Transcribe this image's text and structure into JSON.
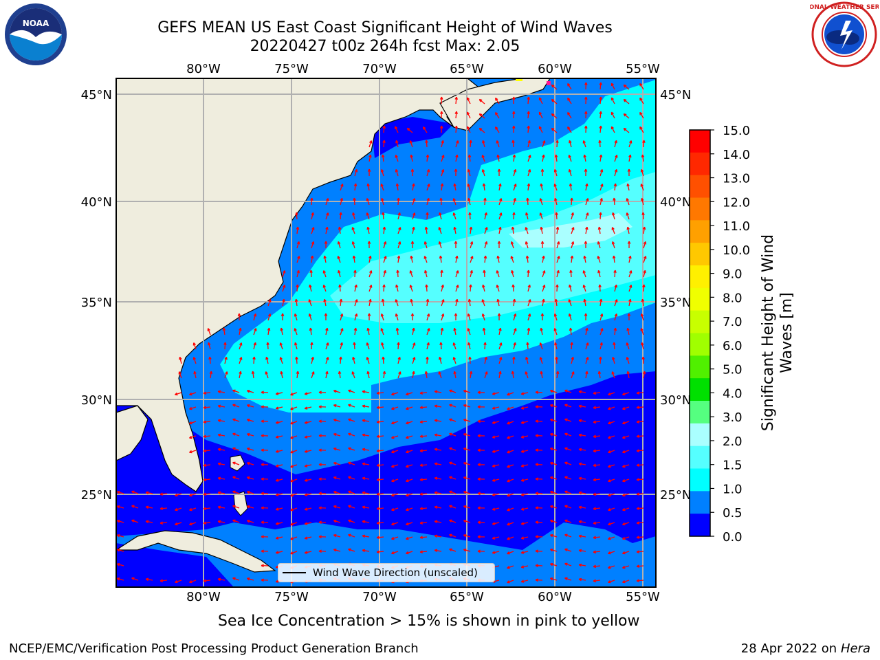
{
  "header": {
    "title_line1": "GEFS MEAN US East Coast Significant Height of Wind Waves",
    "title_line2": "20220427 t00z 264h fcst   Max: 2.05"
  },
  "map": {
    "lon_labels": [
      "80°W",
      "75°W",
      "70°W",
      "65°W",
      "60°W",
      "55°W"
    ],
    "lat_labels": [
      "45°N",
      "40°N",
      "35°N",
      "30°N",
      "25°N"
    ],
    "colors": {
      "land": "#efedde",
      "ocean_0": "#0000ff",
      "ocean_05": "#0080ff",
      "ocean_1": "#00ffff",
      "ocean_15": "#55ffff",
      "ocean_2": "#aaffff",
      "arrow": "#ff0000",
      "grid": "#b0b0b0"
    },
    "legend_label": "Wind Wave Direction (unscaled)"
  },
  "colorbar": {
    "label": "Significant Height of Wind Waves [m]",
    "ticks": [
      "15.0",
      "14.0",
      "13.0",
      "12.0",
      "11.0",
      "10.0",
      "9.0",
      "8.0",
      "7.0",
      "6.0",
      "5.0",
      "4.0",
      "3.0",
      "2.0",
      "1.5",
      "1.0",
      "0.5",
      "0.0"
    ],
    "colors_top_to_bottom": [
      "#ff0000",
      "#ff2800",
      "#ff5000",
      "#ff7800",
      "#ffa000",
      "#ffc800",
      "#fff000",
      "#f0ff00",
      "#c8ff00",
      "#a0ff00",
      "#50f000",
      "#00e000",
      "#55ff80",
      "#aaffff",
      "#55ffff",
      "#00ffff",
      "#0080ff",
      "#0000ff"
    ]
  },
  "notes": {
    "ice": "Sea Ice Concentration > 15% is shown in pink to yellow"
  },
  "footer": {
    "left": "NCEP/EMC/Verification Post Processing Product Generation Branch",
    "right_prefix": "28 Apr 2022 on ",
    "right_host": "Hera"
  },
  "logos": {
    "noaa": "NOAA",
    "nws": "NATIONAL WEATHER SERVICE"
  }
}
